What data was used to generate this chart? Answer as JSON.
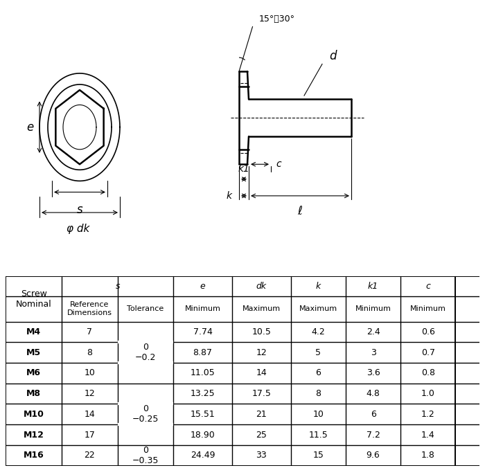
{
  "background_color": "#ffffff",
  "table": {
    "row_labels": [
      "M4",
      "M5",
      "M6",
      "M8",
      "M10",
      "M12",
      "M16"
    ],
    "ref_dims": [
      "7",
      "8",
      "10",
      "12",
      "14",
      "17",
      "22"
    ],
    "e_vals": [
      "7.74",
      "8.87",
      "11.05",
      "13.25",
      "15.51",
      "18.90",
      "24.49"
    ],
    "dk_vals": [
      "10.5",
      "12",
      "14",
      "17.5",
      "21",
      "25",
      "33"
    ],
    "k_vals": [
      "4.2",
      "5",
      "6",
      "8",
      "10",
      "11.5",
      "15"
    ],
    "k1_vals": [
      "2.4",
      "3",
      "3.6",
      "4.8",
      "6",
      "7.2",
      "9.6"
    ],
    "c_vals": [
      "0.6",
      "0.7",
      "0.8",
      "1.0",
      "1.2",
      "1.4",
      "1.8"
    ],
    "tol_groups": [
      {
        "rows": [
          0,
          1,
          2
        ],
        "label": "0\n−0.2"
      },
      {
        "rows": [
          3,
          4,
          5
        ],
        "label": "0\n−0.25"
      },
      {
        "rows": [
          6
        ],
        "label": "0\n−0.35"
      }
    ]
  },
  "diagram": {
    "angle_label": "15°～30°",
    "d_label": "d",
    "e_label": "e",
    "s_label": "s",
    "phi_dk_label": "φ dk",
    "k1_label": "k1",
    "c_label": "c",
    "k_label": "k",
    "l_label": "ℓ"
  }
}
